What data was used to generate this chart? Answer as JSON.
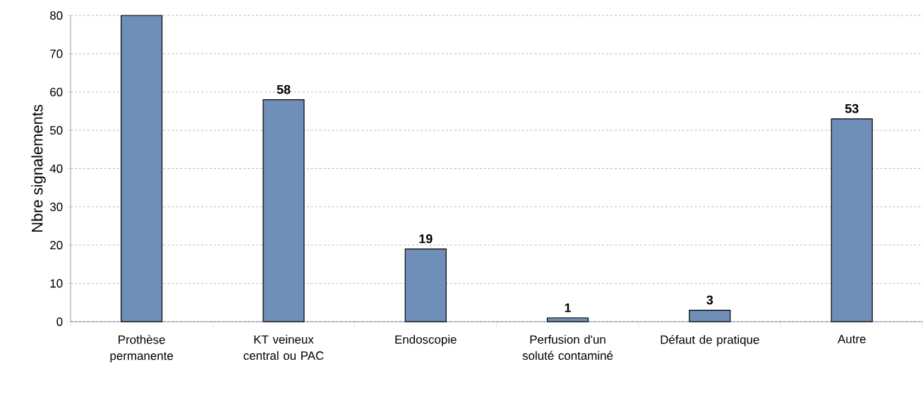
{
  "chart_data": {
    "type": "bar",
    "ylabel": "Nbre signalements",
    "categories": [
      "Prothèse permanente",
      "KT veineux central ou PAC",
      "Endoscopie",
      "Perfusion d'un soluté contaminé",
      "Défaut de pratique",
      "Autre"
    ],
    "values": [
      80,
      58,
      19,
      1,
      3,
      53
    ],
    "value_labels": [
      null,
      "58",
      "19",
      "1",
      "3",
      "53"
    ],
    "color": "#6f8fb8",
    "ylim": [
      0,
      80
    ],
    "yticks": [
      0,
      10,
      20,
      30,
      40,
      50,
      60,
      70,
      80
    ],
    "grid": "y"
  }
}
